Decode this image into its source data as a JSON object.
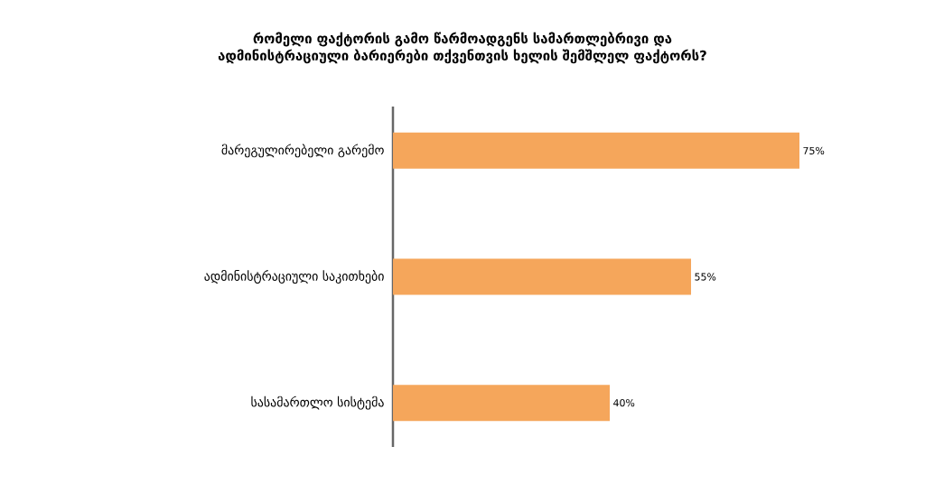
{
  "chart_data": {
    "type": "bar",
    "orientation": "horizontal",
    "title": "რომელი ფაქტორის გამო წარმოადგენს სამართლებრივი და ადმინისტრაციული ბარიერები თქვენთვის ხელის შემშლელ ფაქტორს?",
    "categories": [
      "მარეგულირებელი გარემო",
      "ადმინისტრაციული საკითხები",
      "სასამართლო სისტემა"
    ],
    "values": [
      75,
      55,
      40
    ],
    "value_labels": [
      "75%",
      "55%",
      "40%"
    ],
    "color": "#f5a65b"
  }
}
